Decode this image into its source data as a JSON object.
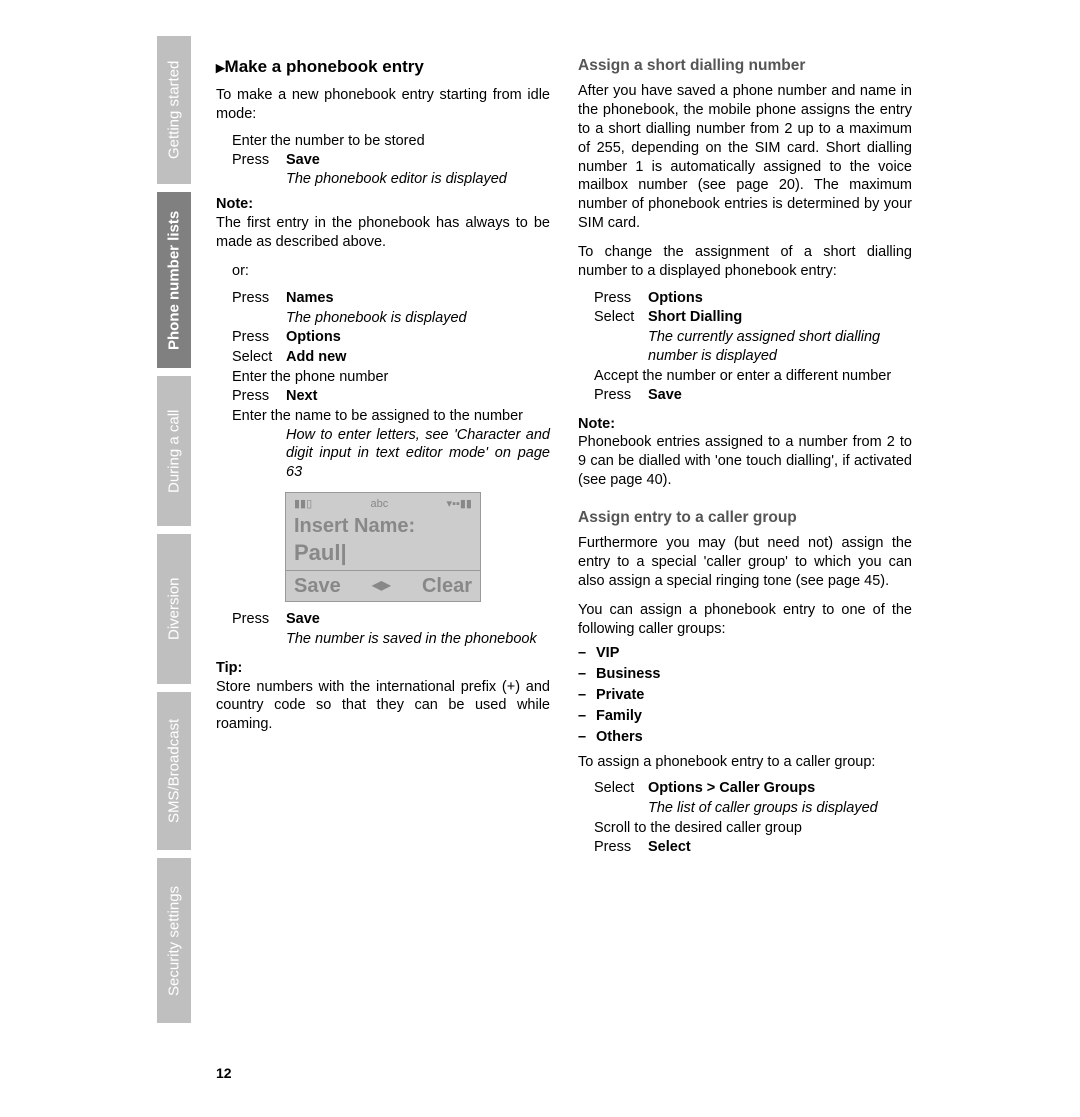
{
  "sidebar": {
    "tabs": [
      {
        "label": "Getting started"
      },
      {
        "label": "Phone number lists"
      },
      {
        "label": "During a call"
      },
      {
        "label": "Diversion"
      },
      {
        "label": "SMS/Broadcast"
      },
      {
        "label": "Security settings"
      }
    ]
  },
  "left": {
    "h1": "Make a phonebook entry",
    "intro": "To make a new phonebook entry starting from idle mode:",
    "step1": "Enter the number to be stored",
    "step2_left": "Press",
    "step2_right": "Save",
    "step2_ital": "The phonebook editor is displayed",
    "note_label": "Note:",
    "note_text": "The first entry in the phonebook has always to be made as described above.",
    "or": "or:",
    "s_press": "Press",
    "s_select": "Select",
    "names": "Names",
    "names_ital": "The phonebook is displayed",
    "options": "Options",
    "addnew": "Add new",
    "enter_phone": "Enter the phone number",
    "next": "Next",
    "enter_name": "Enter the name to be assigned to the number",
    "howto": "How to enter letters, see 'Character and digit input in text editor mode' on page 63",
    "phone_abc": "abc",
    "phone_insert": "Insert Name:",
    "phone_paul": "Paul|",
    "phone_save": "Save",
    "phone_clear": "Clear",
    "save2_left": "Press",
    "save2_right": "Save",
    "save2_ital": "The number is saved in the phonebook",
    "tip_label": "Tip:",
    "tip_text": "Store numbers with the international prefix (+) and country code so that they can be used while roaming."
  },
  "right": {
    "h2a": "Assign a short dialling number",
    "para_a": "After you have saved a phone number and name in the phonebook, the mobile phone assigns the entry to a short dialling number from 2 up to a maximum of 255, depending on the SIM card. Short dialling number 1 is automatically assigned to the voice mailbox number (see page 20). The maximum number of phonebook entries is determined by your SIM card.",
    "para_a2": "To change the assignment of a short dialling number to a displayed phonebook entry:",
    "a_press": "Press",
    "a_select": "Select",
    "a_options": "Options",
    "a_short": "Short Dialling",
    "a_ital": "The currently assigned short dialling number is displayed",
    "a_accept": "Accept the number or enter a different number",
    "a_save": "Save",
    "note_label": "Note:",
    "note_b": "Phonebook entries assigned to a number from 2 to 9 can be dialled with 'one touch dialling', if activated (see page 40).",
    "h2b": "Assign entry to a caller group",
    "para_b": "Furthermore you may (but need not) assign the entry to a special 'caller group' to which you can also assign a special ringing tone (see page 45).",
    "para_b2": "You can assign a phonebook entry to one of the following caller groups:",
    "groups": [
      "VIP",
      "Business",
      "Private",
      "Family",
      "Others"
    ],
    "para_b3": "To assign a phonebook entry to a caller group:",
    "b_select": "Select",
    "b_opt_caller": "Options > Caller Groups",
    "b_ital": "The list of caller groups is displayed",
    "b_scroll": "Scroll to the desired caller group",
    "b_press": "Press",
    "b_selectbtn": "Select"
  },
  "pagenum": "12"
}
